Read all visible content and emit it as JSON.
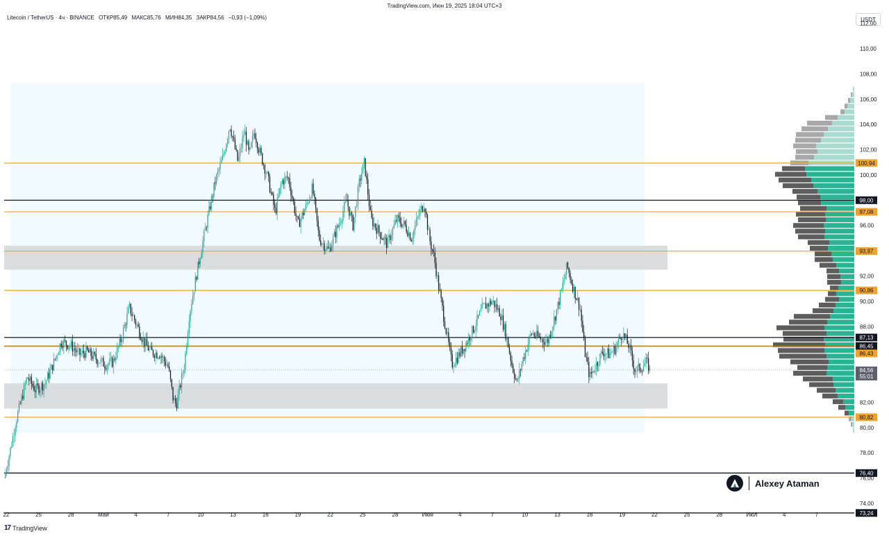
{
  "header": {
    "source": "TradingView.com, Июн 19, 2025 18:04 UTC+3",
    "pair": "Litecoin / TetherUS · 4ч · BINANCE",
    "open": "ОТКР85,49",
    "high": "МАКС85,76",
    "low": "МИН84,35",
    "close": "ЗАКР84,56",
    "change": "−0,93 (−1,09%)"
  },
  "currency": "USDT",
  "footer": {
    "logo_glyph": "17",
    "brand": "TradingView"
  },
  "watermark": {
    "name": "Alexey Ataman"
  },
  "colors": {
    "up": "#26a69a",
    "down": "#131722",
    "orange": "#f0a22e",
    "black": "#131722",
    "zone": "#d9dadc",
    "range": "#e6f6fb",
    "vp_green": "#2cb394",
    "vp_green_light": "#a8dcd0",
    "vp_gray": "#5d5d5d",
    "vp_gray_light": "#a8a8a8"
  },
  "chart_data": {
    "type": "candlestick",
    "title": "Litecoin / TetherUS · 4ч · BINANCE",
    "ylim": [
      72.9,
      112.2
    ],
    "xlim": [
      -0.06,
      26.16
    ],
    "y_ticks": [
      "74,00",
      "76,00",
      "78,00",
      "80,00",
      "82,00",
      "84,00",
      "86,00",
      "88,00",
      "90,00",
      "92,00",
      "94,00",
      "96,00",
      "98,00",
      "100,00",
      "102,00",
      "104,00",
      "106,00",
      "108,00",
      "110,00",
      "112,00"
    ],
    "x_ticks": [
      {
        "label": "22",
        "x": 0
      },
      {
        "label": "25",
        "x": 1
      },
      {
        "label": "28",
        "x": 2
      },
      {
        "label": "Май",
        "x": 3
      },
      {
        "label": "4",
        "x": 4
      },
      {
        "label": "7",
        "x": 5
      },
      {
        "label": "10",
        "x": 6
      },
      {
        "label": "13",
        "x": 7
      },
      {
        "label": "16",
        "x": 8
      },
      {
        "label": "19",
        "x": 9
      },
      {
        "label": "22",
        "x": 10
      },
      {
        "label": "25",
        "x": 11
      },
      {
        "label": "28",
        "x": 12
      },
      {
        "label": "Июн",
        "x": 13
      },
      {
        "label": "4",
        "x": 14
      },
      {
        "label": "7",
        "x": 15
      },
      {
        "label": "10",
        "x": 16
      },
      {
        "label": "13",
        "x": 17
      },
      {
        "label": "16",
        "x": 18
      },
      {
        "label": "19",
        "x": 19
      },
      {
        "label": "22",
        "x": 20
      },
      {
        "label": "25",
        "x": 21
      },
      {
        "label": "28",
        "x": 22
      },
      {
        "label": "Июл",
        "x": 23
      },
      {
        "label": "4",
        "x": 24
      },
      {
        "label": "7",
        "x": 25
      }
    ],
    "levels": [
      {
        "value": 100.94,
        "label": "100,94",
        "color": "orange"
      },
      {
        "value": 98.0,
        "label": "98,00",
        "color": "black"
      },
      {
        "value": 97.08,
        "label": "97,08",
        "color": "orange"
      },
      {
        "value": 93.97,
        "label": "93,97",
        "color": "orange"
      },
      {
        "value": 90.86,
        "label": "90,86",
        "color": "orange"
      },
      {
        "value": 87.13,
        "label": "87,13",
        "color": "black"
      },
      {
        "value": 86.45,
        "label": "86,45",
        "color": "black"
      },
      {
        "value": 86.43,
        "label": "86,43",
        "color": "orange"
      },
      {
        "value": 80.82,
        "label": "80,82",
        "color": "orange"
      },
      {
        "value": 76.4,
        "label": "76,40",
        "color": "black"
      },
      {
        "value": 73.24,
        "label": "73,24",
        "color": "black"
      }
    ],
    "last_price": {
      "value": 84.56,
      "label": "84,56",
      "countdown": "55:01"
    },
    "zones": [
      {
        "x0": -0.06,
        "x1": 20.4,
        "y0": 92.5,
        "y1": 94.4
      },
      {
        "x0": -0.06,
        "x1": 20.4,
        "y0": 81.5,
        "y1": 83.5
      }
    ],
    "range_box": {
      "x0": 0.13,
      "x1": 19.7,
      "y0": 79.6,
      "y1": 107.3
    },
    "path": [
      [
        -0.06,
        76.0
      ],
      [
        0.15,
        78.5
      ],
      [
        0.3,
        80.5
      ],
      [
        0.5,
        82.5
      ],
      [
        0.65,
        84.0
      ],
      [
        0.9,
        83.0
      ],
      [
        1.2,
        83.5
      ],
      [
        1.45,
        85.0
      ],
      [
        1.7,
        86.8
      ],
      [
        2.0,
        86.5
      ],
      [
        2.25,
        85.8
      ],
      [
        2.5,
        86.0
      ],
      [
        2.75,
        85.5
      ],
      [
        3.05,
        85.0
      ],
      [
        3.3,
        85.2
      ],
      [
        3.55,
        87.0
      ],
      [
        3.8,
        89.5
      ],
      [
        4.0,
        88.3
      ],
      [
        4.25,
        86.8
      ],
      [
        4.45,
        86.0
      ],
      [
        4.75,
        85.8
      ],
      [
        5.0,
        84.8
      ],
      [
        5.15,
        82.3
      ],
      [
        5.25,
        81.8
      ],
      [
        5.5,
        85.0
      ],
      [
        5.65,
        89.0
      ],
      [
        5.9,
        92.5
      ],
      [
        6.05,
        94.5
      ],
      [
        6.25,
        97.0
      ],
      [
        6.45,
        99.5
      ],
      [
        6.7,
        101.5
      ],
      [
        6.9,
        104.0
      ],
      [
        7.15,
        101.0
      ],
      [
        7.35,
        103.5
      ],
      [
        7.5,
        101.5
      ],
      [
        7.65,
        103.5
      ],
      [
        7.8,
        102.0
      ],
      [
        8.05,
        100.0
      ],
      [
        8.3,
        97.0
      ],
      [
        8.5,
        99.5
      ],
      [
        8.7,
        99.8
      ],
      [
        9.0,
        96.0
      ],
      [
        9.25,
        97.5
      ],
      [
        9.45,
        99.0
      ],
      [
        9.65,
        95.0
      ],
      [
        9.95,
        94.0
      ],
      [
        10.25,
        96.0
      ],
      [
        10.5,
        98.0
      ],
      [
        10.7,
        96.0
      ],
      [
        10.9,
        99.5
      ],
      [
        11.05,
        101.0
      ],
      [
        11.25,
        96.5
      ],
      [
        11.5,
        95.5
      ],
      [
        11.75,
        94.5
      ],
      [
        12.05,
        96.5
      ],
      [
        12.3,
        96.0
      ],
      [
        12.5,
        95.0
      ],
      [
        12.75,
        97.0
      ],
      [
        12.9,
        97.8
      ],
      [
        13.05,
        95.0
      ],
      [
        13.2,
        93.5
      ],
      [
        13.35,
        91.0
      ],
      [
        13.55,
        88.0
      ],
      [
        13.75,
        85.0
      ],
      [
        13.9,
        85.5
      ],
      [
        14.15,
        86.5
      ],
      [
        14.45,
        88.0
      ],
      [
        14.7,
        89.5
      ],
      [
        15.0,
        90.0
      ],
      [
        15.25,
        89.0
      ],
      [
        15.45,
        87.0
      ],
      [
        15.6,
        85.0
      ],
      [
        15.75,
        83.5
      ],
      [
        15.95,
        85.5
      ],
      [
        16.2,
        87.5
      ],
      [
        16.5,
        87.0
      ],
      [
        16.7,
        86.8
      ],
      [
        16.95,
        89.0
      ],
      [
        17.1,
        90.5
      ],
      [
        17.3,
        92.8
      ],
      [
        17.5,
        91.0
      ],
      [
        17.7,
        89.5
      ],
      [
        17.85,
        86.0
      ],
      [
        18.0,
        84.0
      ],
      [
        18.2,
        85.0
      ],
      [
        18.4,
        86.0
      ],
      [
        18.6,
        85.8
      ],
      [
        18.8,
        86.3
      ],
      [
        19.0,
        87.5
      ],
      [
        19.2,
        86.5
      ],
      [
        19.4,
        84.5
      ],
      [
        19.6,
        84.8
      ],
      [
        19.75,
        85.2
      ],
      [
        19.85,
        84.6
      ]
    ],
    "volume_profile": {
      "base_x": 26.16,
      "bin_size": 0.45,
      "bins": [
        {
          "p": 79.8,
          "g": 2,
          "k": 0
        },
        {
          "p": 80.25,
          "g": 3,
          "k": 2
        },
        {
          "p": 80.7,
          "g": 4,
          "k": 4
        },
        {
          "p": 81.15,
          "g": 8,
          "k": 6
        },
        {
          "p": 81.6,
          "g": 13,
          "k": 10
        },
        {
          "p": 82.05,
          "g": 16,
          "k": 15
        },
        {
          "p": 82.5,
          "g": 24,
          "k": 22
        },
        {
          "p": 82.95,
          "g": 27,
          "k": 27
        },
        {
          "p": 83.4,
          "g": 30,
          "k": 35
        },
        {
          "p": 83.85,
          "g": 31,
          "k": 43
        },
        {
          "p": 84.3,
          "g": 40,
          "k": 48
        },
        {
          "p": 84.75,
          "g": 39,
          "k": 43
        },
        {
          "p": 85.2,
          "g": 37,
          "k": 55
        },
        {
          "p": 85.65,
          "g": 40,
          "k": 68
        },
        {
          "p": 86.1,
          "g": 43,
          "k": 67
        },
        {
          "p": 86.55,
          "g": 42,
          "k": 75
        },
        {
          "p": 87.0,
          "g": 44,
          "k": 58
        },
        {
          "p": 87.45,
          "g": 40,
          "k": 63
        },
        {
          "p": 87.9,
          "g": 43,
          "k": 69
        },
        {
          "p": 88.35,
          "g": 39,
          "k": 55
        },
        {
          "p": 88.8,
          "g": 35,
          "k": 52
        },
        {
          "p": 89.25,
          "g": 30,
          "k": 30
        },
        {
          "p": 89.7,
          "g": 27,
          "k": 24
        },
        {
          "p": 90.15,
          "g": 22,
          "k": 20
        },
        {
          "p": 90.6,
          "g": 26,
          "k": 12
        },
        {
          "p": 91.05,
          "g": 23,
          "k": 12
        },
        {
          "p": 91.5,
          "g": 19,
          "k": 20
        },
        {
          "p": 91.95,
          "g": 20,
          "k": 19
        },
        {
          "p": 92.4,
          "g": 22,
          "k": 18
        },
        {
          "p": 92.85,
          "g": 26,
          "k": 24
        },
        {
          "p": 93.3,
          "g": 31,
          "k": 26
        },
        {
          "p": 93.75,
          "g": 33,
          "k": 24
        },
        {
          "p": 94.2,
          "g": 38,
          "k": 26
        },
        {
          "p": 94.65,
          "g": 36,
          "k": 31
        },
        {
          "p": 95.1,
          "g": 43,
          "k": 38
        },
        {
          "p": 95.55,
          "g": 42,
          "k": 43
        },
        {
          "p": 96.0,
          "g": 44,
          "k": 44
        },
        {
          "p": 96.45,
          "g": 41,
          "k": 40
        },
        {
          "p": 96.9,
          "g": 42,
          "k": 42
        },
        {
          "p": 97.35,
          "g": 40,
          "k": 38
        },
        {
          "p": 97.8,
          "g": 48,
          "k": 33
        },
        {
          "p": 98.25,
          "g": 49,
          "k": 34
        },
        {
          "p": 98.7,
          "g": 53,
          "k": 36
        },
        {
          "p": 99.15,
          "g": 59,
          "k": 44
        },
        {
          "p": 99.6,
          "g": 62,
          "k": 47
        },
        {
          "p": 100.05,
          "g": 69,
          "k": 45
        },
        {
          "p": 100.5,
          "g": 71,
          "k": 33
        },
        {
          "p": 100.95,
          "g": 66,
          "k": 26
        },
        {
          "p": 101.4,
          "g": 58,
          "k": 27
        },
        {
          "p": 101.85,
          "g": 53,
          "k": 31
        },
        {
          "p": 102.3,
          "g": 55,
          "k": 33
        },
        {
          "p": 102.75,
          "g": 48,
          "k": 37
        },
        {
          "p": 103.2,
          "g": 44,
          "k": 40
        },
        {
          "p": 103.65,
          "g": 38,
          "k": 38
        },
        {
          "p": 104.1,
          "g": 32,
          "k": 36
        },
        {
          "p": 104.55,
          "g": 24,
          "k": 18
        },
        {
          "p": 105.0,
          "g": 14,
          "k": 6
        },
        {
          "p": 105.45,
          "g": 10,
          "k": 4
        },
        {
          "p": 105.9,
          "g": 6,
          "k": 3
        },
        {
          "p": 106.35,
          "g": 3,
          "k": 2
        },
        {
          "p": 106.8,
          "g": 2,
          "k": 0
        }
      ]
    }
  }
}
